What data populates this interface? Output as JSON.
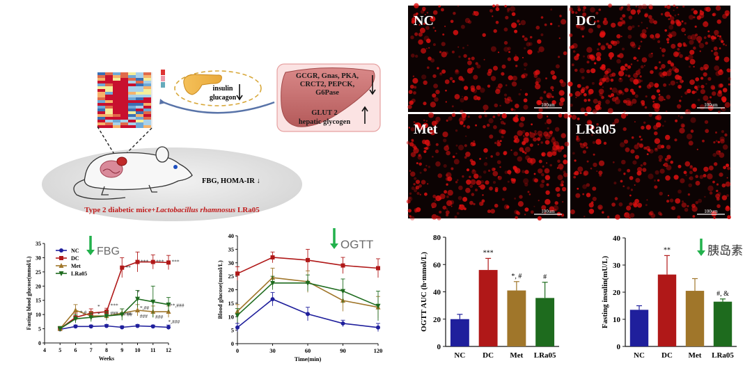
{
  "abstract": {
    "organ_text": {
      "line1": "GCGR, Gnas, PKA,",
      "line2": "CRCT2, PEPCK,",
      "line3": "G6Pase",
      "line4": "GLUT 2",
      "line5": "hepatic glycogen"
    },
    "pancreas_text": {
      "line1": "insulin",
      "line2": "glucagon"
    },
    "mouse_text": "FBG, HOMA-IR ↓",
    "caption_prefix": "Type 2 diabetic mice+",
    "caption_italic": "Lactobacillus rhamnosus",
    "caption_suffix": " LRa05"
  },
  "micrographs": [
    {
      "label": "NC",
      "scale": "100um"
    },
    {
      "label": "DC",
      "scale": "100um"
    },
    {
      "label": "Met",
      "scale": "100um"
    },
    {
      "label": "LRa05",
      "scale": "100um"
    }
  ],
  "colors": {
    "NC": "#1f1f9c",
    "DC": "#b01818",
    "Met": "#a0762a",
    "LRa05": "#1e6b1e",
    "arrow": "#22b14c",
    "fluor": "#e01010"
  },
  "chart_data": [
    {
      "type": "line",
      "annotation": "FBG",
      "xlabel": "Weeks",
      "ylabel": "Fasting blood glucose(mmol/L)",
      "xlim": [
        4,
        12
      ],
      "ylim": [
        0,
        35
      ],
      "xticks": [
        "4",
        "5",
        "6",
        "7",
        "8",
        "9",
        "10",
        "11",
        "12"
      ],
      "yticks": [
        "0",
        "5",
        "10",
        "15",
        "20",
        "25",
        "30",
        "35"
      ],
      "x": [
        5,
        6,
        7,
        8,
        9,
        10,
        11,
        12
      ],
      "legend": [
        "NC",
        "DC",
        "Met",
        "LRa05"
      ],
      "series": [
        {
          "name": "NC",
          "values": [
            4.8,
            5.8,
            5.8,
            6.0,
            5.5,
            6.0,
            5.8,
            5.5
          ],
          "errors": [
            0.5,
            0.5,
            0.5,
            0.5,
            0.5,
            0.5,
            0.5,
            0.8
          ]
        },
        {
          "name": "DC",
          "values": [
            5.0,
            9.0,
            10.5,
            11.0,
            26.5,
            28.5,
            28.5,
            28.3
          ],
          "errors": [
            0.8,
            1.5,
            1.5,
            1.2,
            3.5,
            3.5,
            2.5,
            2.5
          ]
        },
        {
          "name": "Met",
          "values": [
            5.0,
            11.5,
            9.5,
            9.5,
            10.5,
            11.5,
            11.0,
            11.0
          ],
          "errors": [
            0.8,
            2.0,
            1.5,
            1.5,
            1.5,
            2.0,
            2.0,
            2.0
          ]
        },
        {
          "name": "LRa05",
          "values": [
            5.0,
            8.5,
            9.0,
            9.5,
            10.0,
            15.5,
            14.5,
            13.5
          ],
          "errors": [
            0.8,
            1.5,
            1.5,
            1.5,
            2.0,
            3.0,
            5.5,
            2.5
          ]
        }
      ],
      "annotations": [
        {
          "x": 7.5,
          "y": 12.2,
          "text": "*"
        },
        {
          "x": 9.4,
          "y": 26,
          "text": "**"
        },
        {
          "x": 10.45,
          "y": 28,
          "text": "***"
        },
        {
          "x": 11.45,
          "y": 28,
          "text": "***"
        },
        {
          "x": 12.45,
          "y": 28,
          "text": "***"
        },
        {
          "x": 8.5,
          "y": 12.6,
          "text": "***"
        },
        {
          "x": 10.05,
          "y": 17.2,
          "text": "*"
        },
        {
          "x": 10.45,
          "y": 11.7,
          "text": "*,##"
        },
        {
          "x": 9.35,
          "y": 9.7,
          "text": "###"
        },
        {
          "x": 10.4,
          "y": 8.8,
          "text": "###"
        },
        {
          "x": 11.4,
          "y": 8.6,
          "text": "###"
        },
        {
          "x": 12.55,
          "y": 12.6,
          "text": "**,###"
        },
        {
          "x": 12.35,
          "y": 6.8,
          "text": "*,###"
        },
        {
          "x": 6.5,
          "y": 10.2,
          "text": "*,#"
        },
        {
          "x": 7.5,
          "y": 9.5,
          "text": "*"
        },
        {
          "x": 8.5,
          "y": 9.9,
          "text": "###"
        },
        {
          "x": 9.5,
          "y": 9.4,
          "text": "##"
        }
      ]
    },
    {
      "type": "line",
      "annotation": "OGTT",
      "xlabel": "Time(min)",
      "ylabel": "Blood glucose(mmol/L)",
      "xlim": [
        0,
        120
      ],
      "ylim": [
        0,
        40
      ],
      "xticks": [
        "0",
        "30",
        "60",
        "90",
        "120"
      ],
      "yticks": [
        "0",
        "5",
        "10",
        "15",
        "20",
        "25",
        "30",
        "35",
        "40"
      ],
      "x": [
        0,
        30,
        60,
        90,
        120
      ],
      "series": [
        {
          "name": "NC",
          "values": [
            6.0,
            16.5,
            11.0,
            7.5,
            6.0
          ],
          "errors": [
            1.5,
            2.5,
            2.5,
            1.2,
            1.5
          ]
        },
        {
          "name": "DC",
          "values": [
            26.0,
            32.0,
            31.0,
            29.0,
            28.0
          ],
          "errors": [
            2.5,
            2.0,
            4.0,
            3.0,
            3.5
          ]
        },
        {
          "name": "Met",
          "values": [
            12.0,
            24.5,
            23.0,
            16.0,
            13.5
          ],
          "errors": [
            2.5,
            3.5,
            4.0,
            4.0,
            4.0
          ]
        },
        {
          "name": "LRa05",
          "values": [
            10.5,
            22.5,
            22.5,
            19.5,
            14.0
          ],
          "errors": [
            2.5,
            2.5,
            3.0,
            4.5,
            5.5
          ]
        }
      ]
    },
    {
      "type": "bar",
      "xlabel": "",
      "ylabel": "OGTT AUC (h·mmol/L)",
      "ylim": [
        0,
        80
      ],
      "yticks": [
        "0",
        "20",
        "40",
        "60",
        "80"
      ],
      "categories": [
        "NC",
        "DC",
        "Met",
        "LRa05"
      ],
      "values": [
        20,
        56,
        41,
        35.5
      ],
      "errors": [
        3.5,
        8.5,
        6.5,
        11.5
      ],
      "labels": [
        "",
        "***",
        "*, #",
        "#"
      ]
    },
    {
      "type": "bar",
      "annotation": "胰岛素",
      "xlabel": "",
      "ylabel": "Fasting insulin(mU/L)",
      "ylim": [
        0,
        40
      ],
      "yticks": [
        "0",
        "10",
        "20",
        "30",
        "40"
      ],
      "categories": [
        "NC",
        "DC",
        "Met",
        "LRa05"
      ],
      "values": [
        13.5,
        26.5,
        20.5,
        16.5
      ],
      "errors": [
        1.5,
        7.0,
        4.5,
        1.0
      ],
      "labels": [
        "",
        "**",
        "",
        "#, &"
      ]
    }
  ]
}
